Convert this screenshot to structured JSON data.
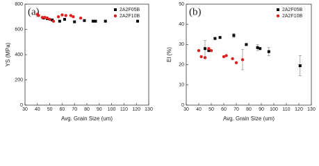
{
  "chart_data": [
    {
      "type": "scatter",
      "panel_label": "(a)",
      "x_label": "Avg. Grain Size (um)",
      "y_label": "YS (MPa)",
      "xlim": [
        30,
        130
      ],
      "ylim": [
        0,
        800
      ],
      "xticks": [
        30,
        40,
        50,
        60,
        70,
        80,
        90,
        100,
        110,
        120,
        130
      ],
      "yticks": [
        0,
        200,
        400,
        600,
        800
      ],
      "legend": "top-right",
      "series": [
        {
          "name": "2A2F05B",
          "color": "#000000",
          "marker": "square",
          "x": [
            45,
            48,
            52,
            58,
            62,
            70,
            78,
            85,
            87,
            95,
            121
          ],
          "values": [
            690,
            685,
            675,
            665,
            680,
            660,
            670,
            665,
            665,
            665,
            665
          ]
        },
        {
          "name": "2A2F10B",
          "color": "#e02020",
          "marker": "circle",
          "x": [
            40,
            41,
            44,
            46,
            48,
            50,
            53,
            57,
            60,
            63,
            67,
            69,
            75
          ],
          "values": [
            720,
            710,
            695,
            695,
            690,
            680,
            665,
            700,
            715,
            710,
            710,
            700,
            690
          ]
        }
      ]
    },
    {
      "type": "scatter",
      "panel_label": "(b)",
      "x_label": "Avg. Grain Size (um)",
      "y_label": "El (%)",
      "xlim": [
        30,
        130
      ],
      "ylim": [
        0,
        50
      ],
      "xticks": [
        30,
        40,
        50,
        60,
        70,
        80,
        90,
        100,
        110,
        120,
        130
      ],
      "yticks": [
        0,
        10,
        20,
        30,
        40,
        50
      ],
      "legend": "top-right",
      "series": [
        {
          "name": "2A2F05B",
          "color": "#000000",
          "marker": "square",
          "x": [
            45,
            48,
            53,
            57,
            68,
            78,
            87,
            89,
            96,
            121
          ],
          "values": [
            28,
            27,
            33,
            33.5,
            34.5,
            30,
            28.5,
            28,
            26.5,
            19.5
          ],
          "errors": [
            4,
            null,
            null,
            null,
            1,
            null,
            1.5,
            null,
            2,
            5
          ]
        },
        {
          "name": "2A2F10B",
          "color": "#e02020",
          "marker": "circle",
          "x": [
            40,
            42,
            45,
            48,
            50,
            60,
            62,
            67,
            70,
            75
          ],
          "values": [
            27,
            24,
            23.5,
            28,
            27,
            24,
            24.5,
            23,
            21,
            22.5
          ],
          "errors": [
            null,
            null,
            null,
            null,
            null,
            null,
            null,
            null,
            null,
            5
          ]
        }
      ]
    }
  ]
}
